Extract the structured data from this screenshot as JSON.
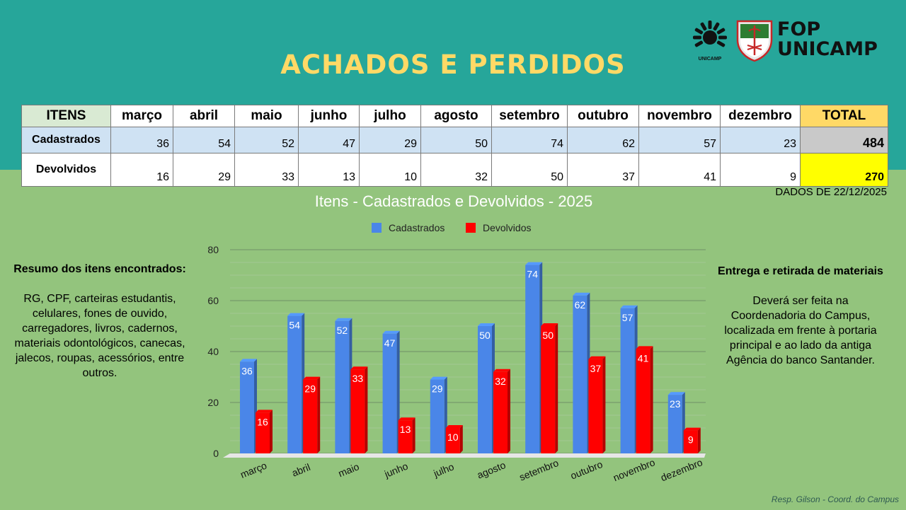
{
  "page": {
    "title": "ACHADOS E PERDIDOS",
    "title_color": "#ffd966",
    "band_color": "#26a69a",
    "background_color": "#93c47d",
    "logo_text_line1": "FOP",
    "logo_text_line2": "UNICAMP",
    "logo_small_caption": "UNICAMP",
    "data_date": "DADOS DE 22/12/2025",
    "footer_credit": "Resp. Gilson - Coord. do Campus"
  },
  "table": {
    "header_itens": "ITENS",
    "months": [
      "março",
      "abril",
      "maio",
      "junho",
      "julho",
      "agosto",
      "setembro",
      "outubro",
      "novembro",
      "dezembro"
    ],
    "header_total": "TOTAL",
    "rows": [
      {
        "label": "Cadastrados",
        "values": [
          "36",
          "54",
          "52",
          "47",
          "29",
          "50",
          "74",
          "62",
          "57",
          "23"
        ],
        "total": "484"
      },
      {
        "label": "Devolvidos",
        "values": [
          "16",
          "29",
          "33",
          "13",
          "10",
          "32",
          "50",
          "37",
          "41",
          "9"
        ],
        "total": "270"
      }
    ]
  },
  "left_panel": {
    "heading": "Resumo dos itens encontrados:",
    "body": "RG, CPF, carteiras estudantis, celulares, fones de ouvido, carregadores, livros, cadernos, materiais odontológicos, canecas, jalecos, roupas, acessórios, entre outros."
  },
  "right_panel": {
    "heading": "Entrega e retirada de materiais",
    "body": "Deverá ser feita na Coordenadoria do Campus, localizada em frente à portaria principal e ao lado da antiga Agência do banco Santander."
  },
  "chart_data": {
    "type": "bar",
    "title": "Itens - Cadastrados e Devolvidos - 2025",
    "categories": [
      "março",
      "abril",
      "maio",
      "junho",
      "julho",
      "agosto",
      "setembro",
      "outubro",
      "novembro",
      "dezembro"
    ],
    "series": [
      {
        "name": "Cadastrados",
        "values": [
          36,
          54,
          52,
          47,
          29,
          50,
          74,
          62,
          57,
          23
        ],
        "color": "#4a86e8"
      },
      {
        "name": "Devolvidos",
        "values": [
          16,
          29,
          33,
          13,
          10,
          32,
          50,
          37,
          41,
          9
        ],
        "color": "#ff0000"
      }
    ],
    "ylim": [
      0,
      80
    ],
    "yticks": [
      0,
      20,
      40,
      60,
      80
    ],
    "legend_position": "top",
    "grid": true,
    "style": "3d-bars"
  }
}
